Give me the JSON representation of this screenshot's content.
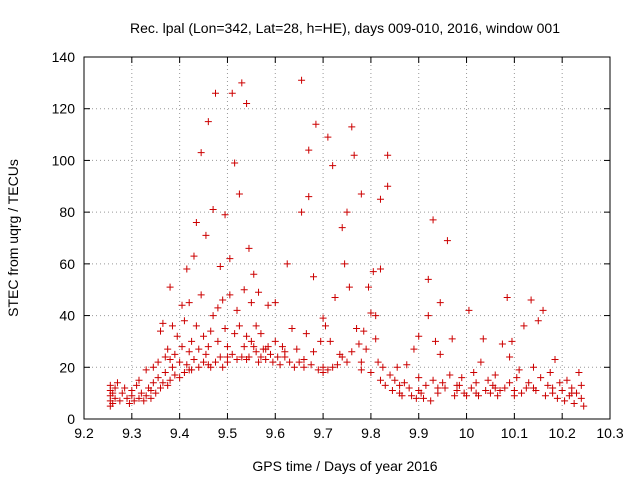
{
  "chart_data": {
    "type": "scatter",
    "title": "Rec. lpal (Lon=342, Lat=28, h=HE), days 009-010, 2016, window 001",
    "xlabel": "GPS time / Days of year 2016",
    "ylabel": "STEC from uqrg / TECUs",
    "xlim": [
      9.2,
      10.3
    ],
    "ylim": [
      0,
      140
    ],
    "xticks": [
      9.2,
      9.3,
      9.4,
      9.5,
      9.6,
      9.7,
      9.8,
      9.9,
      10.0,
      10.1,
      10.2,
      10.3
    ],
    "xtick_labels": [
      "9.2",
      "9.3",
      "9.4",
      "9.5",
      "9.6",
      "9.7",
      "9.8",
      "9.9",
      "10",
      "10.1",
      "10.2",
      "10.3"
    ],
    "yticks": [
      0,
      20,
      40,
      60,
      80,
      100,
      120,
      140
    ],
    "ytick_labels": [
      "0",
      "20",
      "40",
      "60",
      "80",
      "100",
      "120",
      "140"
    ],
    "grid": true,
    "marker": "+",
    "color": "#cc0000",
    "points": [
      [
        9.255,
        7
      ],
      [
        9.255,
        9
      ],
      [
        9.255,
        11
      ],
      [
        9.255,
        13
      ],
      [
        9.26,
        6
      ],
      [
        9.26,
        10
      ],
      [
        9.265,
        8
      ],
      [
        9.265,
        12
      ],
      [
        9.27,
        14
      ],
      [
        9.275,
        7
      ],
      [
        9.28,
        10
      ],
      [
        9.285,
        12
      ],
      [
        9.29,
        8
      ],
      [
        9.295,
        6
      ],
      [
        9.3,
        9
      ],
      [
        9.3,
        11
      ],
      [
        9.305,
        7
      ],
      [
        9.31,
        13
      ],
      [
        9.315,
        8
      ],
      [
        9.315,
        15
      ],
      [
        9.32,
        10
      ],
      [
        9.325,
        7
      ],
      [
        9.33,
        9
      ],
      [
        9.33,
        19
      ],
      [
        9.335,
        12
      ],
      [
        9.34,
        8
      ],
      [
        9.345,
        14
      ],
      [
        9.345,
        20
      ],
      [
        9.35,
        10
      ],
      [
        9.355,
        16
      ],
      [
        9.355,
        22
      ],
      [
        9.36,
        12
      ],
      [
        9.36,
        34
      ],
      [
        9.365,
        14
      ],
      [
        9.365,
        37
      ],
      [
        9.37,
        18
      ],
      [
        9.37,
        24
      ],
      [
        9.375,
        13
      ],
      [
        9.375,
        27
      ],
      [
        9.38,
        15
      ],
      [
        9.38,
        51
      ],
      [
        9.385,
        20
      ],
      [
        9.385,
        36
      ],
      [
        9.39,
        17
      ],
      [
        9.39,
        25
      ],
      [
        9.395,
        32
      ],
      [
        9.4,
        16
      ],
      [
        9.4,
        22
      ],
      [
        9.405,
        28
      ],
      [
        9.405,
        44
      ],
      [
        9.41,
        18
      ],
      [
        9.41,
        38
      ],
      [
        9.415,
        21
      ],
      [
        9.415,
        58
      ],
      [
        9.42,
        26
      ],
      [
        9.42,
        45
      ],
      [
        9.425,
        19
      ],
      [
        9.425,
        30
      ],
      [
        9.43,
        23
      ],
      [
        9.43,
        63
      ],
      [
        9.435,
        36
      ],
      [
        9.435,
        76
      ],
      [
        9.44,
        20
      ],
      [
        9.44,
        27
      ],
      [
        9.445,
        48
      ],
      [
        9.445,
        103
      ],
      [
        9.45,
        22
      ],
      [
        9.45,
        32
      ],
      [
        9.455,
        25
      ],
      [
        9.455,
        71
      ],
      [
        9.46,
        28
      ],
      [
        9.46,
        115
      ],
      [
        9.465,
        20
      ],
      [
        9.465,
        34
      ],
      [
        9.47,
        40
      ],
      [
        9.47,
        81
      ],
      [
        9.475,
        22
      ],
      [
        9.475,
        126
      ],
      [
        9.48,
        30
      ],
      [
        9.48,
        43
      ],
      [
        9.485,
        24
      ],
      [
        9.485,
        59
      ],
      [
        9.49,
        20
      ],
      [
        9.49,
        46
      ],
      [
        9.495,
        35
      ],
      [
        9.495,
        79
      ],
      [
        9.5,
        22
      ],
      [
        9.5,
        28
      ],
      [
        9.505,
        48
      ],
      [
        9.505,
        62
      ],
      [
        9.51,
        25
      ],
      [
        9.51,
        126
      ],
      [
        9.515,
        33
      ],
      [
        9.515,
        99
      ],
      [
        9.52,
        23
      ],
      [
        9.52,
        42
      ],
      [
        9.525,
        36
      ],
      [
        9.525,
        87
      ],
      [
        9.53,
        24
      ],
      [
        9.53,
        130
      ],
      [
        9.535,
        28
      ],
      [
        9.535,
        50
      ],
      [
        9.54,
        32
      ],
      [
        9.54,
        122
      ],
      [
        9.545,
        24
      ],
      [
        9.545,
        66
      ],
      [
        9.55,
        30
      ],
      [
        9.55,
        45
      ],
      [
        9.555,
        28
      ],
      [
        9.555,
        56
      ],
      [
        9.56,
        26
      ],
      [
        9.56,
        36
      ],
      [
        9.565,
        22
      ],
      [
        9.565,
        49
      ],
      [
        9.57,
        24
      ],
      [
        9.57,
        33
      ],
      [
        9.575,
        27
      ],
      [
        9.58,
        23
      ],
      [
        9.585,
        28
      ],
      [
        9.585,
        44
      ],
      [
        9.59,
        25
      ],
      [
        9.595,
        22
      ],
      [
        9.6,
        30
      ],
      [
        9.6,
        45
      ],
      [
        9.605,
        24
      ],
      [
        9.61,
        21
      ],
      [
        9.615,
        28
      ],
      [
        9.62,
        26
      ],
      [
        9.625,
        60
      ],
      [
        9.63,
        22
      ],
      [
        9.635,
        35
      ],
      [
        9.64,
        20
      ],
      [
        9.645,
        27
      ],
      [
        9.65,
        22
      ],
      [
        9.655,
        80
      ],
      [
        9.655,
        131
      ],
      [
        9.66,
        20
      ],
      [
        9.665,
        33
      ],
      [
        9.67,
        86
      ],
      [
        9.67,
        104
      ],
      [
        9.675,
        21
      ],
      [
        9.68,
        26
      ],
      [
        9.68,
        55
      ],
      [
        9.685,
        114
      ],
      [
        9.69,
        19
      ],
      [
        9.695,
        30
      ],
      [
        9.7,
        39
      ],
      [
        9.7,
        18
      ],
      [
        9.705,
        36
      ],
      [
        9.71,
        19
      ],
      [
        9.71,
        109
      ],
      [
        9.715,
        30
      ],
      [
        9.72,
        20
      ],
      [
        9.72,
        98
      ],
      [
        9.725,
        47
      ],
      [
        9.73,
        21
      ],
      [
        9.735,
        25
      ],
      [
        9.74,
        74
      ],
      [
        9.745,
        60
      ],
      [
        9.75,
        22
      ],
      [
        9.75,
        80
      ],
      [
        9.755,
        51
      ],
      [
        9.76,
        26
      ],
      [
        9.76,
        113
      ],
      [
        9.765,
        102
      ],
      [
        9.77,
        35
      ],
      [
        9.775,
        29
      ],
      [
        9.78,
        22
      ],
      [
        9.78,
        87
      ],
      [
        9.785,
        34
      ],
      [
        9.79,
        27
      ],
      [
        9.795,
        51
      ],
      [
        9.8,
        18
      ],
      [
        9.8,
        41
      ],
      [
        9.805,
        57
      ],
      [
        9.81,
        31
      ],
      [
        9.81,
        40
      ],
      [
        9.815,
        22
      ],
      [
        9.82,
        58
      ],
      [
        9.82,
        85
      ],
      [
        9.825,
        20
      ],
      [
        9.83,
        13
      ],
      [
        9.835,
        90
      ],
      [
        9.835,
        102
      ],
      [
        9.84,
        17
      ],
      [
        9.845,
        11
      ],
      [
        9.85,
        15
      ],
      [
        9.855,
        20
      ],
      [
        9.86,
        10
      ],
      [
        9.865,
        9
      ],
      [
        9.87,
        14
      ],
      [
        9.875,
        21
      ],
      [
        9.88,
        12
      ],
      [
        9.885,
        9
      ],
      [
        9.89,
        27
      ],
      [
        9.895,
        8
      ],
      [
        9.9,
        16
      ],
      [
        9.9,
        32
      ],
      [
        9.905,
        10
      ],
      [
        9.91,
        8
      ],
      [
        9.915,
        13
      ],
      [
        9.92,
        54
      ],
      [
        9.92,
        40
      ],
      [
        9.925,
        7
      ],
      [
        9.93,
        15
      ],
      [
        9.93,
        77
      ],
      [
        9.935,
        30
      ],
      [
        9.94,
        10
      ],
      [
        9.945,
        45
      ],
      [
        9.945,
        25
      ],
      [
        9.95,
        14
      ],
      [
        9.955,
        12
      ],
      [
        9.96,
        69
      ],
      [
        9.965,
        17
      ],
      [
        9.97,
        31
      ],
      [
        9.975,
        9
      ],
      [
        9.98,
        11
      ],
      [
        9.985,
        13
      ],
      [
        9.99,
        16
      ],
      [
        9.995,
        10
      ],
      [
        10.0,
        9
      ],
      [
        10.005,
        42
      ],
      [
        10.01,
        12
      ],
      [
        10.015,
        18
      ],
      [
        10.02,
        14
      ],
      [
        10.025,
        9
      ],
      [
        10.03,
        22
      ],
      [
        10.035,
        31
      ],
      [
        10.04,
        11
      ],
      [
        10.045,
        15
      ],
      [
        10.05,
        10
      ],
      [
        10.055,
        13
      ],
      [
        10.06,
        17
      ],
      [
        10.065,
        9
      ],
      [
        10.07,
        11
      ],
      [
        10.075,
        29
      ],
      [
        10.08,
        12
      ],
      [
        10.085,
        47
      ],
      [
        10.09,
        14
      ],
      [
        10.09,
        24
      ],
      [
        10.095,
        30
      ],
      [
        10.1,
        9
      ],
      [
        10.105,
        16
      ],
      [
        10.11,
        19
      ],
      [
        10.115,
        10
      ],
      [
        10.12,
        36
      ],
      [
        10.125,
        12
      ],
      [
        10.13,
        14
      ],
      [
        10.135,
        46
      ],
      [
        10.14,
        20
      ],
      [
        10.145,
        11
      ],
      [
        10.15,
        38
      ],
      [
        10.155,
        16
      ],
      [
        10.16,
        42
      ],
      [
        10.165,
        9
      ],
      [
        10.17,
        13
      ],
      [
        10.175,
        18
      ],
      [
        10.18,
        10
      ],
      [
        10.185,
        23
      ],
      [
        10.19,
        8
      ],
      [
        10.195,
        14
      ],
      [
        10.2,
        11
      ],
      [
        10.205,
        7
      ],
      [
        10.21,
        15
      ],
      [
        10.215,
        9
      ],
      [
        10.22,
        12
      ],
      [
        10.225,
        6
      ],
      [
        10.23,
        10
      ],
      [
        10.235,
        18
      ],
      [
        10.24,
        8
      ],
      [
        10.24,
        13
      ],
      [
        10.245,
        5
      ],
      [
        9.255,
        5
      ],
      [
        9.34,
        11
      ],
      [
        9.38,
        23
      ],
      [
        9.42,
        19
      ],
      [
        9.46,
        21
      ],
      [
        9.5,
        24
      ],
      [
        9.54,
        23
      ],
      [
        9.58,
        27
      ],
      [
        9.62,
        24
      ],
      [
        9.66,
        23
      ],
      [
        9.7,
        20
      ],
      [
        9.74,
        24
      ],
      [
        9.78,
        19
      ],
      [
        9.82,
        15
      ],
      [
        9.86,
        13
      ],
      [
        9.9,
        11
      ],
      [
        9.94,
        12
      ],
      [
        9.98,
        13
      ],
      [
        10.02,
        10
      ],
      [
        10.06,
        12
      ],
      [
        10.1,
        11
      ],
      [
        10.14,
        12
      ],
      [
        10.18,
        12
      ],
      [
        10.22,
        10
      ]
    ]
  }
}
